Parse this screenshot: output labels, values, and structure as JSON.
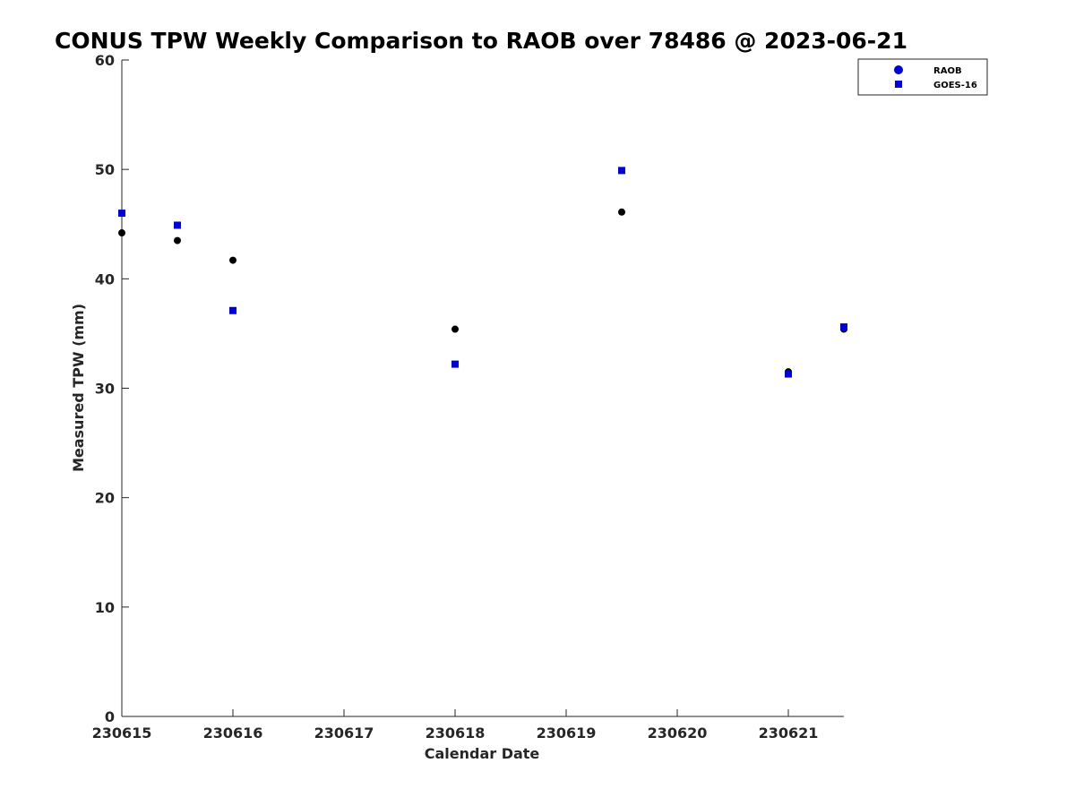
{
  "chart_data": {
    "type": "scatter",
    "title": "CONUS TPW Weekly Comparison to RAOB over 78486 @ 2023-06-21",
    "xlabel": "Calendar Date",
    "ylabel": "Measured TPW (mm)",
    "xlim": [
      0,
      6.5
    ],
    "ylim": [
      0,
      60
    ],
    "x_ticks": [
      0,
      1,
      2,
      3,
      4,
      5,
      6
    ],
    "x_tick_labels": [
      "230615",
      "230616",
      "230617",
      "230618",
      "230619",
      "230620",
      "230621"
    ],
    "y_ticks": [
      0,
      10,
      20,
      30,
      40,
      50,
      60
    ],
    "y_tick_labels": [
      "0",
      "10",
      "20",
      "30",
      "40",
      "50",
      "60"
    ],
    "x_axis_note": "days since 230615",
    "legend_position": "top-right",
    "series": [
      {
        "name": "RAOB",
        "marker": "circle",
        "color": "#000000",
        "legend_color": "#0000dd",
        "points": [
          [
            0,
            44.2
          ],
          [
            0.5,
            43.5
          ],
          [
            1,
            41.7
          ],
          [
            3,
            35.4
          ],
          [
            4.5,
            46.1
          ],
          [
            6,
            31.5
          ],
          [
            6.5,
            35.4
          ]
        ]
      },
      {
        "name": "GOES-16",
        "marker": "square",
        "color": "#0000dd",
        "legend_color": "#0000dd",
        "points": [
          [
            0,
            46.0
          ],
          [
            0.5,
            44.9
          ],
          [
            1,
            37.1
          ],
          [
            3,
            32.2
          ],
          [
            4.5,
            49.9
          ],
          [
            6,
            31.3
          ],
          [
            6.5,
            35.6
          ]
        ]
      }
    ]
  }
}
